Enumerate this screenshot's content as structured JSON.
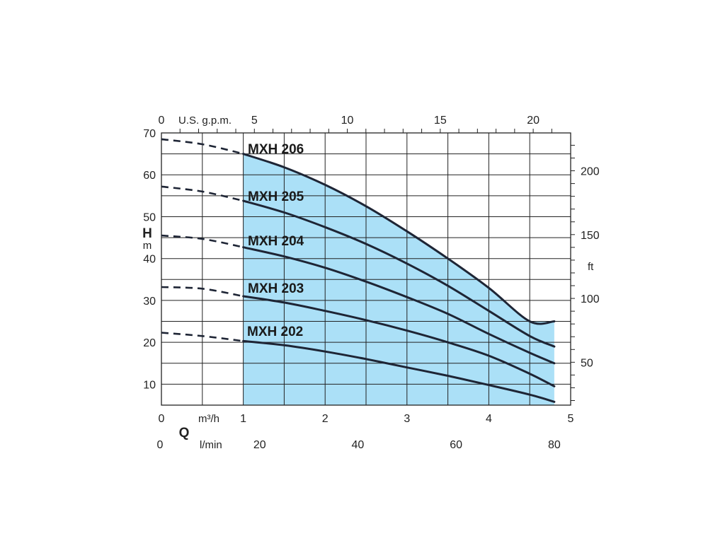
{
  "chart_data": {
    "type": "line",
    "title": "",
    "xlabel_symbol": "Q",
    "ylabel_symbol": "H",
    "ylabel_unit": "m",
    "y_right_unit": "ft",
    "x_unit_primary": "m³/h",
    "x_unit_secondary": "l/min",
    "x_unit_top": "U.S. g.p.m.",
    "xlim": [
      0,
      5
    ],
    "ylim": [
      5,
      70
    ],
    "x_ticks": [
      "0",
      "1",
      "2",
      "3",
      "4",
      "5"
    ],
    "y_ticks": [
      "10",
      "20",
      "30",
      "40",
      "50",
      "60",
      "70"
    ],
    "top_ticks": [
      "0",
      "5",
      "10",
      "15",
      "20"
    ],
    "right_ticks": [
      "50",
      "100",
      "150",
      "200"
    ],
    "lmin_ticks": [
      "0",
      "20",
      "40",
      "60",
      "80"
    ],
    "operating_range": [
      1,
      4.8
    ],
    "operating_fill": "#abe0f7",
    "curve_color": "#1e2535",
    "grid": true,
    "series": [
      {
        "name": "MXH 206",
        "x": [
          0,
          0.5,
          1,
          1.5,
          2,
          2.5,
          3,
          3.5,
          4,
          4.5,
          4.8
        ],
        "y": [
          68.5,
          67.3,
          65,
          61.8,
          57.6,
          52.5,
          46.5,
          40,
          33,
          25,
          25
        ]
      },
      {
        "name": "MXH 205",
        "x": [
          0,
          0.5,
          1,
          1.5,
          2,
          2.5,
          3,
          3.5,
          4,
          4.5,
          4.8
        ],
        "y": [
          57.2,
          56,
          53.8,
          51,
          47.5,
          43.5,
          38.8,
          33.5,
          27.5,
          21.5,
          19
        ]
      },
      {
        "name": "MXH 204",
        "x": [
          0,
          0.5,
          1,
          1.5,
          2,
          2.5,
          3,
          3.5,
          4,
          4.5,
          4.8
        ],
        "y": [
          45.5,
          44.7,
          42.7,
          40.5,
          37.8,
          34.5,
          30.8,
          26.8,
          22,
          17.5,
          15
        ]
      },
      {
        "name": "MXH 203",
        "x": [
          0,
          0.5,
          1,
          1.5,
          2,
          2.5,
          3,
          3.5,
          4,
          4.5,
          4.8
        ],
        "y": [
          33.2,
          32.8,
          31,
          29.5,
          27.5,
          25.3,
          22.8,
          20,
          16.8,
          12.5,
          9.5
        ]
      },
      {
        "name": "MXH 202",
        "x": [
          0,
          0.5,
          1,
          1.5,
          2,
          2.5,
          3,
          3.5,
          4,
          4.5,
          4.8
        ],
        "y": [
          22.3,
          21.5,
          20.3,
          19.3,
          17.8,
          16,
          14,
          12,
          9.8,
          7.5,
          5.8
        ]
      }
    ]
  }
}
